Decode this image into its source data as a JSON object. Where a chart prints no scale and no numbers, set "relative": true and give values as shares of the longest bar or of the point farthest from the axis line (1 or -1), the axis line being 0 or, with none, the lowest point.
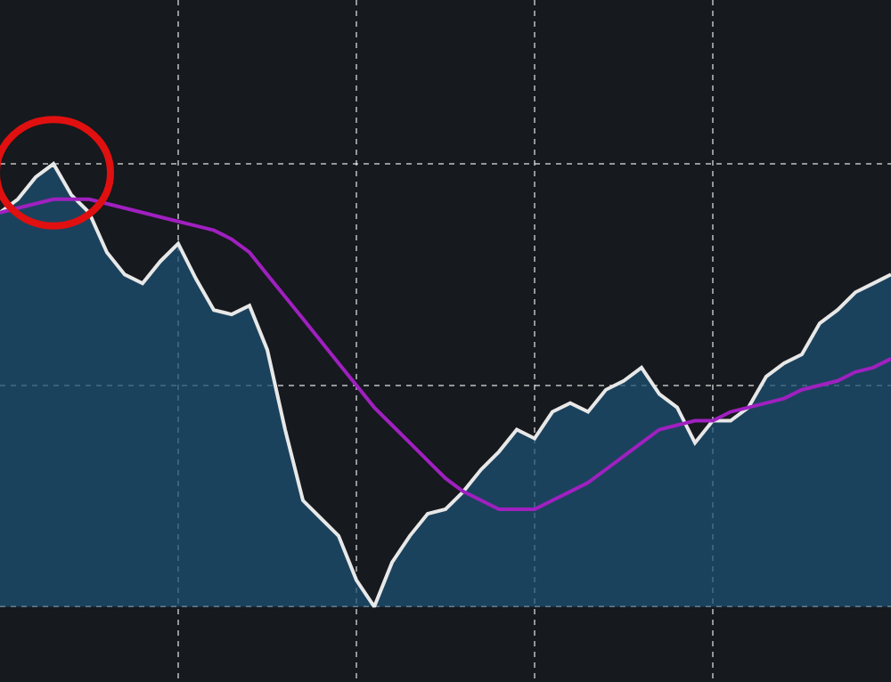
{
  "chart_data": {
    "type": "line",
    "relative": true,
    "grid": true,
    "categories": [
      null,
      null,
      null,
      null,
      null,
      null,
      null,
      null,
      null,
      null,
      null,
      null,
      null,
      null,
      null,
      null,
      null,
      null,
      null,
      null,
      null,
      null,
      null,
      null,
      null,
      null,
      null,
      null,
      null,
      null,
      null,
      null,
      null,
      null,
      null,
      null,
      null,
      null,
      null,
      null,
      null,
      null,
      null,
      null,
      null,
      null,
      null,
      null,
      null,
      null,
      null
    ],
    "series": [
      {
        "type": "area",
        "color": "#e8e8e8",
        "values": [
          0.89,
          0.92,
          0.97,
          1.0,
          0.93,
          0.89,
          0.8,
          0.75,
          0.73,
          0.78,
          0.82,
          0.74,
          0.67,
          0.66,
          0.68,
          0.58,
          0.4,
          0.24,
          0.2,
          0.16,
          0.06,
          0,
          0.1,
          0.16,
          0.21,
          0.22,
          0.26,
          0.31,
          0.35,
          0.4,
          0.38,
          0.44,
          0.46,
          0.44,
          0.49,
          0.51,
          0.54,
          0.48,
          0.45,
          0.37,
          0.42,
          0.42,
          0.45,
          0.52,
          0.55,
          0.57,
          0.64,
          0.67,
          0.71,
          0.73,
          0.75
        ]
      },
      {
        "color": "#a020c0",
        "values": [
          0.89,
          0.9,
          0.91,
          0.92,
          0.92,
          0.92,
          0.91,
          0.9,
          0.89,
          0.88,
          0.87,
          0.86,
          0.85,
          0.83,
          0.8,
          0.75,
          0.7,
          0.65,
          0.6,
          0.55,
          0.5,
          0.45,
          0.41,
          0.37,
          0.33,
          0.29,
          0.26,
          0.24,
          0.22,
          0.22,
          0.22,
          0.24,
          0.26,
          0.28,
          0.31,
          0.34,
          0.37,
          0.4,
          0.41,
          0.42,
          0.42,
          0.44,
          0.45,
          0.46,
          0.47,
          0.49,
          0.5,
          0.51,
          0.53,
          0.54,
          0.56
        ]
      }
    ]
  }
}
